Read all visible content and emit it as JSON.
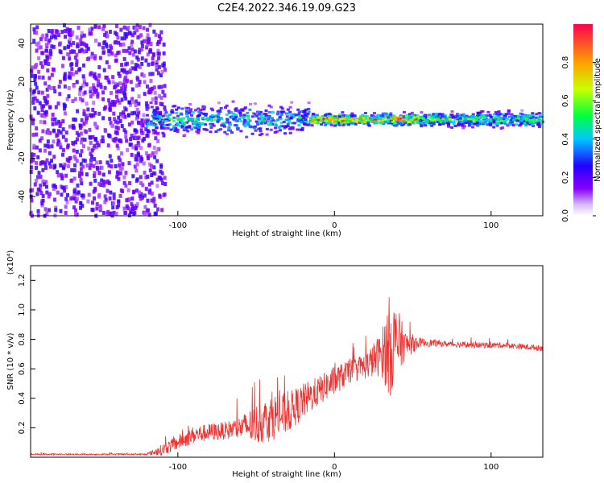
{
  "title": "C2E4.2022.346.19.09.G23",
  "chart_data": [
    {
      "type": "heatmap",
      "xlabel": "Height of straight line (km)",
      "ylabel": "Frequency (Hz)",
      "xlim": [
        -194,
        133
      ],
      "ylim": [
        -50,
        50
      ],
      "xticks": [
        -100,
        0,
        100
      ],
      "yticks": [
        -40,
        -20,
        0,
        20,
        40
      ],
      "colorbar": {
        "label": "Normalized spectral amplitude",
        "range": [
          0,
          1
        ],
        "ticks": [
          "0.0",
          "0.2",
          "0.4",
          "0.6",
          "0.8"
        ],
        "colors": [
          "#ffffff",
          "#8a00ff",
          "#2200ff",
          "#00c8ff",
          "#00ff40",
          "#c8ff00",
          "#ffa000",
          "#ff0040"
        ]
      },
      "regions": [
        {
          "x_range": [
            -194,
            -108
          ],
          "freq_spread": 50,
          "amplitude": 0.2
        },
        {
          "x_range": [
            -120,
            -15
          ],
          "freq_spread": 8,
          "amplitude": 0.45
        },
        {
          "x_range": [
            -15,
            55
          ],
          "freq_spread": 3,
          "amplitude": 0.8
        },
        {
          "x_range": [
            55,
            133
          ],
          "freq_spread": 4,
          "amplitude": 0.55
        }
      ]
    },
    {
      "type": "line",
      "xlabel": "Height of straight line (km)",
      "ylabel": "SNR (10 * v/v)",
      "multiplier": "(x10⁴)",
      "xlim": [
        -194,
        133
      ],
      "ylim": [
        0,
        1.3
      ],
      "xticks": [
        -100,
        0,
        100
      ],
      "yticks": [
        "0.2",
        "0.4",
        "0.6",
        "0.8",
        "1.0",
        "1.2"
      ],
      "series_color": "#ee3333",
      "x": [
        -194,
        -160,
        -120,
        -110,
        -100,
        -90,
        -80,
        -70,
        -60,
        -50,
        -40,
        -30,
        -20,
        -10,
        0,
        10,
        20,
        30,
        35,
        40,
        45,
        55,
        70,
        90,
        110,
        120,
        133
      ],
      "y": [
        0.02,
        0.02,
        0.02,
        0.05,
        0.1,
        0.15,
        0.17,
        0.18,
        0.2,
        0.22,
        0.27,
        0.3,
        0.38,
        0.45,
        0.52,
        0.58,
        0.62,
        0.7,
        0.75,
        0.78,
        0.76,
        0.78,
        0.77,
        0.76,
        0.76,
        0.75,
        0.74
      ],
      "noise": [
        0.005,
        0.005,
        0.005,
        0.04,
        0.05,
        0.06,
        0.06,
        0.06,
        0.08,
        0.14,
        0.16,
        0.14,
        0.12,
        0.1,
        0.1,
        0.08,
        0.09,
        0.15,
        0.35,
        0.25,
        0.1,
        0.03,
        0.02,
        0.02,
        0.02,
        0.02,
        0.02
      ]
    }
  ]
}
